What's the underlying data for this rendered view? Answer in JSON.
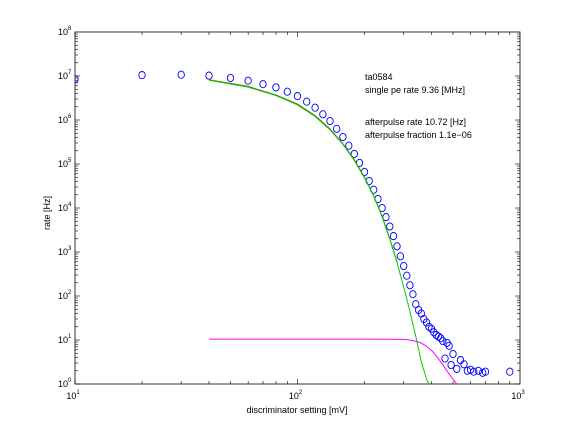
{
  "chart_data": {
    "type": "scatter",
    "xlabel": "discriminator setting [mV]",
    "ylabel": "rate [Hz]",
    "xscale": "log",
    "yscale": "log",
    "xlim": [
      10,
      1000
    ],
    "ylim": [
      1,
      100000000
    ],
    "x_ticks": [
      {
        "value": 10,
        "base": "10",
        "exp": "1"
      },
      {
        "value": 100,
        "base": "10",
        "exp": "2"
      },
      {
        "value": 1000,
        "base": "10",
        "exp": "3"
      }
    ],
    "y_ticks": [
      {
        "value": 1,
        "base": "10",
        "exp": "0"
      },
      {
        "value": 10,
        "base": "10",
        "exp": "1"
      },
      {
        "value": 100,
        "base": "10",
        "exp": "2"
      },
      {
        "value": 1000,
        "base": "10",
        "exp": "3"
      },
      {
        "value": 10000,
        "base": "10",
        "exp": "4"
      },
      {
        "value": 100000,
        "base": "10",
        "exp": "5"
      },
      {
        "value": 1000000,
        "base": "10",
        "exp": "6"
      },
      {
        "value": 10000000,
        "base": "10",
        "exp": "7"
      },
      {
        "value": 100000000,
        "base": "10",
        "exp": "8"
      }
    ],
    "grid": false,
    "annotations": [
      "ta0584",
      "single pe rate 9.36 [MHz]",
      "afterpulse rate 10.72 [Hz]",
      "afterpulse fraction 1.1e−06"
    ],
    "series": [
      {
        "kind": "markers",
        "marker": "circle",
        "color": "#0000ff",
        "points": [
          [
            10,
            8500000.0
          ],
          [
            20,
            10500000.0
          ],
          [
            30,
            10700000.0
          ],
          [
            40,
            10200000.0
          ],
          [
            50,
            9000000.0
          ],
          [
            60,
            7800000.0
          ],
          [
            70,
            6500000.0
          ],
          [
            80,
            5500000.0
          ],
          [
            90,
            4400000.0
          ],
          [
            100,
            3500000.0
          ],
          [
            110,
            2600000.0
          ],
          [
            120,
            1900000.0
          ],
          [
            130,
            1350000.0
          ],
          [
            140,
            950000.0
          ],
          [
            150,
            630000.0
          ],
          [
            160,
            410000.0
          ],
          [
            170,
            260000.0
          ],
          [
            180,
            170000.0
          ],
          [
            190,
            106000.0
          ],
          [
            200,
            66000.0
          ],
          [
            210,
            41000.0
          ],
          [
            220,
            26000.0
          ],
          [
            230,
            16000.0
          ],
          [
            240,
            10000.0
          ],
          [
            250,
            6200.0
          ],
          [
            260,
            3800.0
          ],
          [
            270,
            2300.0
          ],
          [
            280,
            1350.0
          ],
          [
            290,
            800
          ],
          [
            300,
            480
          ],
          [
            310,
            290
          ],
          [
            320,
            175
          ],
          [
            330,
            110
          ],
          [
            340,
            65
          ],
          [
            350,
            48
          ],
          [
            360,
            40
          ],
          [
            370,
            30
          ],
          [
            380,
            25
          ],
          [
            390,
            20
          ],
          [
            400,
            18
          ],
          [
            410,
            15
          ],
          [
            420,
            13
          ],
          [
            430,
            12
          ],
          [
            440,
            11
          ],
          [
            450,
            9.5
          ],
          [
            460,
            3.8
          ],
          [
            470,
            8.6
          ],
          [
            480,
            7.4
          ],
          [
            490,
            2.7
          ],
          [
            500,
            4.8
          ],
          [
            520,
            2.2
          ],
          [
            540,
            3.5
          ],
          [
            560,
            2.8
          ],
          [
            580,
            2.0
          ],
          [
            600,
            2.1
          ],
          [
            620,
            1.9
          ],
          [
            650,
            2.0
          ],
          [
            680,
            1.8
          ],
          [
            700,
            1.9
          ],
          [
            900,
            1.9
          ]
        ]
      },
      {
        "kind": "line",
        "color": "#7a6a00",
        "points": [
          [
            40,
            8200000.0
          ],
          [
            60,
            5800000.0
          ],
          [
            80,
            3700000.0
          ],
          [
            100,
            2300000.0
          ],
          [
            120,
            1250000.0
          ],
          [
            140,
            630000.0
          ],
          [
            160,
            290000.0
          ],
          [
            180,
            125000.0
          ],
          [
            200,
            50000.0
          ],
          [
            220,
            19000.0
          ],
          [
            240,
            6500.0
          ],
          [
            260,
            2000.0
          ],
          [
            280,
            600
          ]
        ]
      },
      {
        "kind": "line",
        "color": "#00cc00",
        "points": [
          [
            40,
            8000000.0
          ],
          [
            60,
            5600000.0
          ],
          [
            80,
            3600000.0
          ],
          [
            100,
            2200000.0
          ],
          [
            120,
            1200000.0
          ],
          [
            140,
            600000.0
          ],
          [
            160,
            280000.0
          ],
          [
            180,
            120000.0
          ],
          [
            200,
            48000.0
          ],
          [
            220,
            18500.0
          ],
          [
            240,
            6300.0
          ],
          [
            260,
            1950.0
          ],
          [
            280,
            580
          ],
          [
            300,
            160
          ],
          [
            320,
            45
          ],
          [
            340,
            12
          ],
          [
            360,
            3.2
          ],
          [
            380,
            1.3
          ],
          [
            390,
            1.0
          ]
        ]
      },
      {
        "kind": "line",
        "color": "#ff00ff",
        "points": [
          [
            40,
            10.5
          ],
          [
            200,
            10.5
          ],
          [
            300,
            10.3
          ],
          [
            320,
            10.0
          ],
          [
            340,
            9.4
          ],
          [
            360,
            8.5
          ],
          [
            380,
            7.2
          ],
          [
            400,
            5.8
          ],
          [
            420,
            4.4
          ],
          [
            440,
            3.2
          ],
          [
            460,
            2.3
          ],
          [
            480,
            1.7
          ],
          [
            500,
            1.3
          ],
          [
            520,
            1.0
          ]
        ]
      }
    ]
  }
}
